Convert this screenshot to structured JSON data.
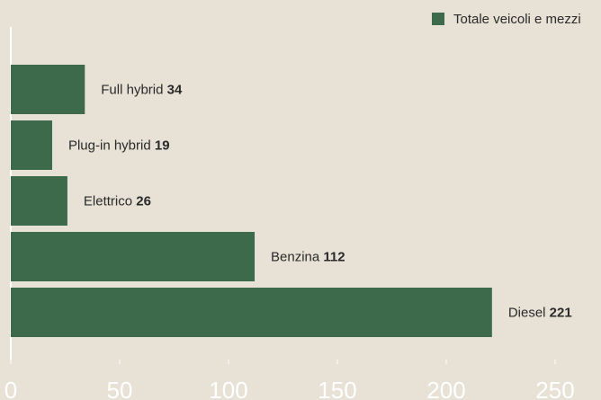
{
  "chart_data": {
    "type": "bar",
    "orientation": "horizontal",
    "categories": [
      "Full hybrid",
      "Plug-in hybrid",
      "Elettrico",
      "Benzina",
      "Diesel"
    ],
    "series": [
      {
        "name": "Totale veicoli e mezzi",
        "color": "#3d6a4b",
        "values": [
          34,
          19,
          26,
          112,
          221
        ]
      }
    ],
    "xlim": [
      0,
      270
    ],
    "xticks": [
      0,
      50,
      100,
      150,
      200,
      250
    ],
    "legend": "top-right"
  }
}
